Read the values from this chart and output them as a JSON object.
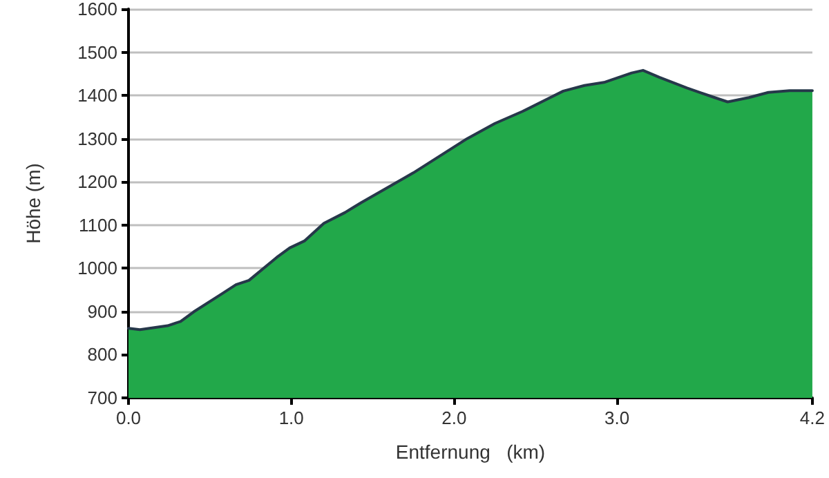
{
  "chart_data": {
    "type": "area",
    "xlabel": "Entfernung   (km)",
    "ylabel": "Höhe (m)",
    "x": [
      0.0,
      0.07,
      0.24,
      0.32,
      0.4,
      0.57,
      0.66,
      0.74,
      0.91,
      0.99,
      1.08,
      1.2,
      1.33,
      1.43,
      1.75,
      2.08,
      2.25,
      2.42,
      2.59,
      2.67,
      2.8,
      2.92,
      3.09,
      3.16,
      3.26,
      3.43,
      3.6,
      3.68,
      3.81,
      3.93,
      4.06,
      4.2
    ],
    "series": [
      {
        "color": "#22a84a",
        "values": [
          861,
          858,
          867,
          877,
          899,
          940,
          962,
          972,
          1025,
          1047,
          1063,
          1104,
          1129,
          1152,
          1221,
          1300,
          1335,
          1363,
          1395,
          1410,
          1423,
          1430,
          1452,
          1458,
          1442,
          1417,
          1395,
          1385,
          1395,
          1407,
          1411,
          1411
        ]
      }
    ],
    "xlim": [
      0,
      4.2
    ],
    "xticks": [
      {
        "value": 0,
        "label": "0.0"
      },
      {
        "value": 1,
        "label": "1.0"
      },
      {
        "value": 2,
        "label": "2.0"
      },
      {
        "value": 3,
        "label": "3.0"
      },
      {
        "value": 4.2,
        "label": "4.2"
      }
    ],
    "ylim": [
      700,
      1600
    ],
    "yticks": [
      700,
      800,
      900,
      1000,
      1100,
      1200,
      1300,
      1400,
      1500,
      1600
    ],
    "grid": "y",
    "marker": "none",
    "line_style": "solid"
  }
}
